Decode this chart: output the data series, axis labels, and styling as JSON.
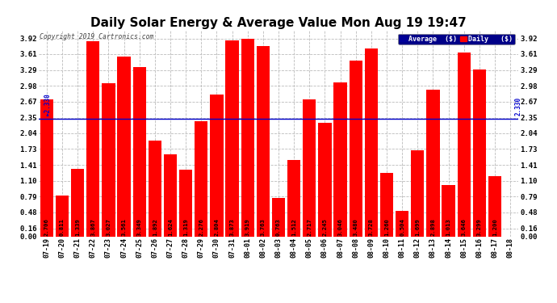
{
  "title": "Daily Solar Energy & Average Value Mon Aug 19 19:47",
  "copyright": "Copyright 2019 Cartronics.com",
  "categories": [
    "07-19",
    "07-20",
    "07-21",
    "07-22",
    "07-23",
    "07-24",
    "07-25",
    "07-26",
    "07-27",
    "07-28",
    "07-29",
    "07-30",
    "07-31",
    "08-01",
    "08-02",
    "08-03",
    "08-04",
    "08-05",
    "08-06",
    "08-07",
    "08-08",
    "08-09",
    "08-10",
    "08-11",
    "08-12",
    "08-13",
    "08-14",
    "08-15",
    "08-16",
    "08-17",
    "08-18"
  ],
  "values": [
    2.706,
    0.811,
    1.339,
    3.867,
    3.027,
    3.561,
    3.349,
    1.892,
    1.624,
    1.319,
    2.276,
    2.804,
    3.873,
    3.919,
    3.763,
    0.763,
    1.512,
    2.717,
    2.245,
    3.046,
    3.48,
    3.728,
    1.26,
    0.504,
    1.699,
    2.898,
    1.013,
    3.646,
    3.299,
    1.2,
    0.0
  ],
  "average": 2.33,
  "yticks": [
    0.0,
    0.16,
    0.48,
    0.79,
    1.1,
    1.41,
    1.73,
    2.04,
    2.35,
    2.67,
    2.98,
    3.29,
    3.61,
    3.92
  ],
  "bar_color": "#FF0000",
  "average_line_color": "#0000CC",
  "background_color": "#FFFFFF",
  "plot_bg_color": "#FFFFFF",
  "grid_color": "#BBBBBB",
  "title_fontsize": 11,
  "bar_label_fontsize": 5.2,
  "ylim": [
    0.0,
    4.08
  ],
  "legend_avg_color": "#000099",
  "legend_daily_color": "#FF0000"
}
